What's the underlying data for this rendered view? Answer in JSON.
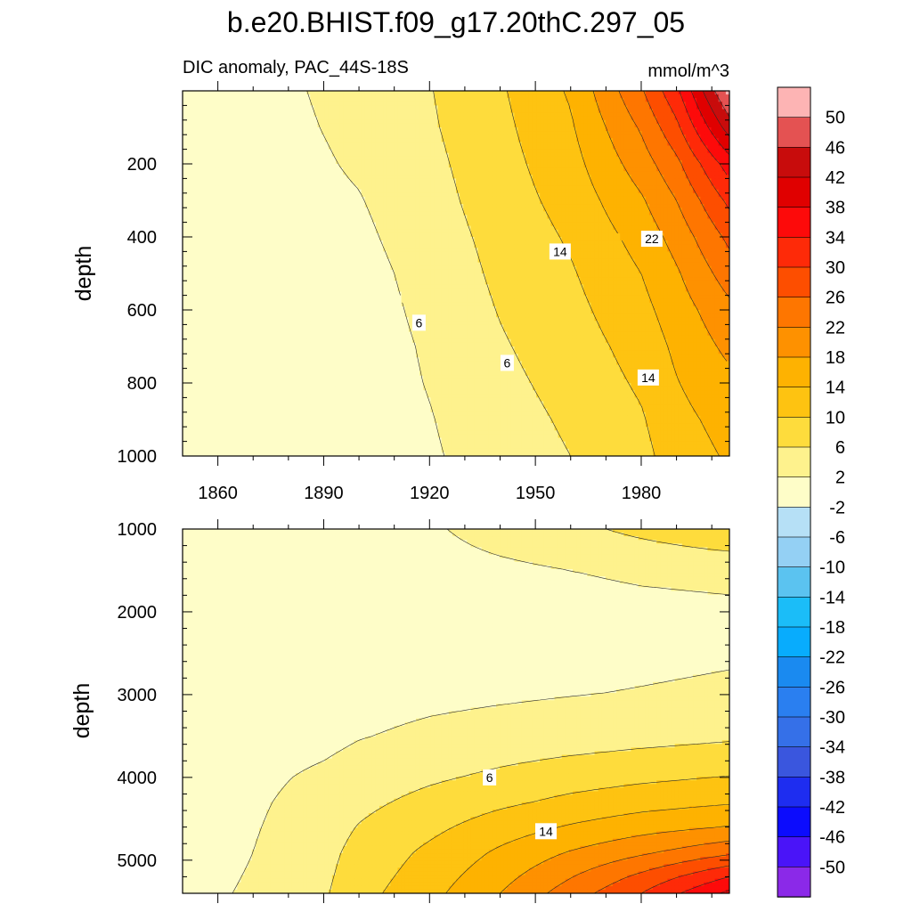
{
  "chart_data": {
    "type": "heatmap",
    "subtype": "filled-contour",
    "title": "b.e20.BHIST.f09_g17.20thC.297_05",
    "left_string": "DIC anomaly, PAC_44S-18S",
    "right_string": "mmol/m^3",
    "units": "mmol/m^3",
    "panels": [
      {
        "name": "upper",
        "ylabel": "depth",
        "ylim": [
          0,
          1000
        ],
        "y_inverted": true,
        "y_ticks": [
          "200",
          "400",
          "600",
          "800",
          "1000"
        ],
        "xlim": [
          1850,
          2005
        ],
        "x_ticks": [
          "1860",
          "1890",
          "1920",
          "1950",
          "1980"
        ],
        "contour_labels": [
          {
            "text": "6",
            "year": 1917,
            "depth": 635
          },
          {
            "text": "6",
            "year": 1942,
            "depth": 745
          },
          {
            "text": "14",
            "year": 1957,
            "depth": 440
          },
          {
            "text": "14",
            "year": 1982,
            "depth": 785
          },
          {
            "text": "22",
            "year": 1983,
            "depth": 405
          }
        ]
      },
      {
        "name": "lower",
        "ylabel": "depth",
        "ylim": [
          1000,
          5400
        ],
        "y_inverted": true,
        "y_ticks": [
          "1000",
          "2000",
          "3000",
          "4000",
          "5000"
        ],
        "xlim": [
          1850,
          2005
        ],
        "contour_labels": [
          {
            "text": "6",
            "year": 1937,
            "depth": 4000
          },
          {
            "text": "14",
            "year": 1953,
            "depth": 4650
          }
        ]
      }
    ],
    "colorbar": {
      "labels": [
        "50",
        "46",
        "42",
        "38",
        "34",
        "30",
        "26",
        "22",
        "18",
        "14",
        "10",
        "6",
        "2",
        "-2",
        "-6",
        "-10",
        "-14",
        "-18",
        "-22",
        "-26",
        "-30",
        "-34",
        "-38",
        "-42",
        "-46",
        "-50"
      ],
      "colors": [
        "#fdb4b4",
        "#e45252",
        "#c80c0c",
        "#e00000",
        "#fd0a0a",
        "#fe2a08",
        "#fd4e00",
        "#fe7600",
        "#fe9100",
        "#feb201",
        "#fec311",
        "#fedc3c",
        "#fef28d",
        "#fefdc8",
        "#b6e0f6",
        "#94d0f4",
        "#5bc3f0",
        "#1bbdf8",
        "#08acfd",
        "#1a8af0",
        "#2a7ff0",
        "#3570e8",
        "#3a56de",
        "#1e2df0",
        "#0c0cfd",
        "#4a14f8",
        "#8b29e8"
      ]
    },
    "fields": {
      "upper": {
        "levels": [
          2,
          6,
          10,
          14,
          18,
          22,
          26,
          30,
          34,
          38,
          42,
          46
        ],
        "years": [
          1850,
          1858,
          1865,
          1880,
          1900,
          1920,
          1940,
          1960,
          1980,
          1990,
          2005
        ],
        "depths": [
          0,
          100,
          200,
          300,
          400,
          500,
          600,
          700,
          800,
          900,
          1000
        ],
        "values": [
          [
            0,
            -1,
            0,
            1.5,
            3.4,
            5.8,
            9.5,
            14.5,
            25.5,
            33.0,
            51
          ],
          [
            0,
            -0.5,
            0,
            1.2,
            3.0,
            5.5,
            9.0,
            13.5,
            22.5,
            29.0,
            44
          ],
          [
            0,
            0,
            0,
            0.8,
            2.5,
            5.0,
            8.5,
            12.5,
            20.0,
            25.0,
            36
          ],
          [
            0,
            0,
            0,
            0.5,
            1.8,
            4.5,
            8.0,
            11.5,
            17.5,
            22.0,
            31
          ],
          [
            0,
            0,
            0,
            0,
            1.2,
            4.0,
            7.3,
            10.5,
            15.5,
            19.5,
            27
          ],
          [
            0,
            0,
            0,
            0,
            0.6,
            3.4,
            6.8,
            9.6,
            14.0,
            17.5,
            24
          ],
          [
            0,
            0,
            0,
            0,
            0.2,
            3.0,
            6.2,
            8.8,
            12.8,
            16.0,
            21
          ],
          [
            0,
            0,
            0,
            0,
            0,
            2.5,
            5.6,
            8.0,
            11.6,
            14.8,
            19
          ],
          [
            0,
            0,
            0,
            0,
            0,
            2.2,
            5.0,
            7.3,
            10.6,
            13.8,
            17
          ],
          [
            0,
            0,
            0,
            0,
            0,
            1.8,
            4.4,
            6.6,
            9.6,
            12.8,
            15.5
          ],
          [
            0,
            0,
            0,
            0,
            0,
            1.5,
            3.9,
            6.0,
            8.8,
            11.9,
            14.5
          ]
        ]
      },
      "lower": {
        "levels": [
          2,
          6,
          10,
          14,
          18,
          22,
          26,
          30,
          34,
          38,
          42
        ],
        "years": [
          1850,
          1870,
          1890,
          1900,
          1920,
          1940,
          1960,
          1980,
          2005
        ],
        "depths": [
          1000,
          1500,
          2000,
          2500,
          3000,
          3500,
          3800,
          4000,
          4300,
          4600,
          4900,
          5200,
          5400
        ],
        "values": [
          [
            0,
            0,
            0,
            0,
            1.5,
            3.5,
            5.0,
            7.0,
            9.5
          ],
          [
            0,
            0,
            0,
            0,
            0.5,
            1.2,
            2.0,
            2.6,
            3.0
          ],
          [
            0,
            0,
            0,
            0,
            0,
            0.3,
            0.6,
            1.0,
            1.3
          ],
          [
            0,
            0,
            0,
            0,
            0.2,
            0.5,
            0.8,
            1.2,
            1.6
          ],
          [
            0,
            0,
            0,
            0.5,
            1.1,
            1.5,
            1.9,
            2.2,
            2.6
          ],
          [
            0,
            0,
            0.9,
            1.8,
            2.8,
            3.5,
            4.1,
            4.7,
            5.4
          ],
          [
            0,
            0.6,
            2.0,
            3.0,
            4.3,
            5.5,
            6.5,
            7.3,
            8.1
          ],
          [
            0,
            1.0,
            2.8,
            3.8,
            5.4,
            6.8,
            8.2,
            9.2,
            10.2
          ],
          [
            0,
            1.4,
            3.6,
            5.0,
            7.2,
            9.2,
            11.0,
            12.4,
            13.6
          ],
          [
            0,
            1.7,
            4.2,
            6.2,
            9.0,
            12.0,
            14.4,
            16.4,
            18.2
          ],
          [
            0,
            2.0,
            4.8,
            7.2,
            10.8,
            14.6,
            18.2,
            21.2,
            25.0
          ],
          [
            0.5,
            2.3,
            5.2,
            8.0,
            12.0,
            16.6,
            21.8,
            27.0,
            34.0
          ],
          [
            0.8,
            2.5,
            5.5,
            8.6,
            12.8,
            18.0,
            24.0,
            30.0,
            39.0
          ]
        ]
      }
    }
  }
}
